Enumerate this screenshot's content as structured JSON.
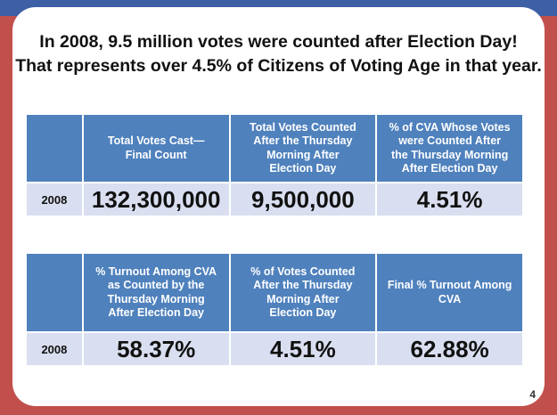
{
  "slide": {
    "title_line1": "In 2008, 9.5 million votes were counted after Election Day!",
    "title_line2": "That represents over 4.5% of Citizens of Voting Age in that year.",
    "page_number": "4"
  },
  "table1": {
    "headers": [
      "",
      "Total Votes Cast—\nFinal Count",
      "Total Votes Counted\nAfter the Thursday\nMorning After\nElection Day",
      "% of CVA Whose Votes\nwere Counted After\nthe Thursday Morning\nAfter Election Day"
    ],
    "row": [
      "2008",
      "132,300,000",
      "9,500,000",
      "4.51%"
    ]
  },
  "table2": {
    "headers": [
      "",
      "% Turnout Among CVA\nas Counted by the\nThursday Morning\nAfter Election Day",
      "% of Votes Counted\nAfter the Thursday\nMorning After\nElection Day",
      "Final % Turnout Among\nCVA"
    ],
    "row": [
      "2008",
      "58.37%",
      "4.51%",
      "62.88%"
    ]
  },
  "colors": {
    "frame_red": "#c1504d",
    "frame_blue": "#3c5fa6",
    "header_blue": "#4f81bd",
    "cell_light": "#d9dff0"
  }
}
